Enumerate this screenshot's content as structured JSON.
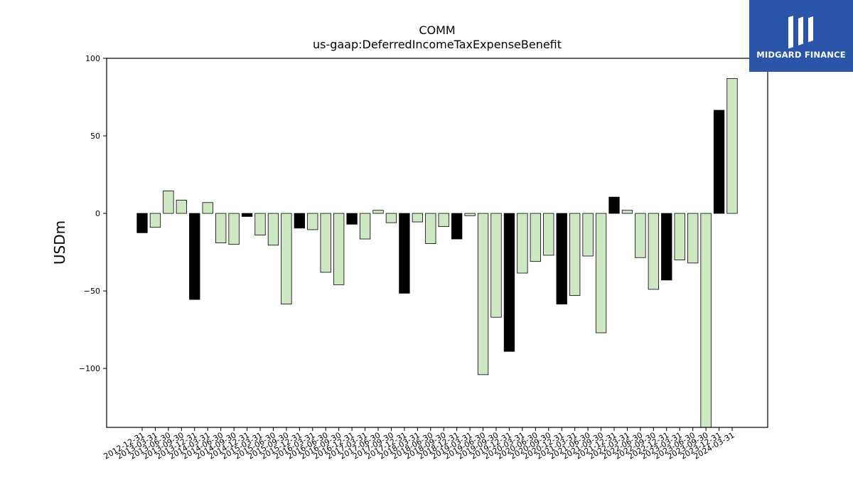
{
  "logo": {
    "text": "MIDGARD FINANCE",
    "bg_color": "#2a55a8"
  },
  "chart_data": {
    "type": "bar",
    "title": "COMM",
    "subtitle": "us-gaap:DeferredIncomeTaxExpenseBenefit",
    "xlabel": "",
    "ylabel": "USDm",
    "ylim": [
      -138,
      100
    ],
    "yticks": [
      100,
      50,
      0,
      -50,
      -100
    ],
    "ytick_labels": [
      "100",
      "50",
      "0",
      "−50",
      "−100"
    ],
    "colors": {
      "quarterly": "#cfe8c4",
      "annual": "#000000",
      "edge": "#000000"
    },
    "categories": [
      "2012-12-31",
      "2013-03-31",
      "2013-06-30",
      "2013-09-30",
      "2013-12-31",
      "2014-03-31",
      "2014-06-30",
      "2014-09-30",
      "2014-12-31",
      "2015-03-31",
      "2015-06-30",
      "2015-09-30",
      "2015-12-31",
      "2016-03-31",
      "2016-06-30",
      "2016-09-30",
      "2016-12-31",
      "2017-03-31",
      "2017-06-30",
      "2017-09-30",
      "2017-12-31",
      "2018-03-31",
      "2018-06-30",
      "2018-09-30",
      "2018-12-31",
      "2019-03-31",
      "2019-06-30",
      "2019-09-30",
      "2019-12-31",
      "2020-03-31",
      "2020-06-30",
      "2020-09-30",
      "2020-12-31",
      "2021-03-31",
      "2021-06-30",
      "2021-09-30",
      "2021-12-31",
      "2022-03-31",
      "2022-06-30",
      "2022-09-30",
      "2022-12-31",
      "2023-03-31",
      "2023-06-30",
      "2023-09-30",
      "2023-12-31",
      "2024-03-31"
    ],
    "values": [
      -12.5,
      -9,
      14.5,
      8.5,
      -55.5,
      7,
      -19,
      -20,
      -2,
      -14,
      -20.5,
      -58.5,
      -9.5,
      -10.5,
      -38,
      -46,
      -7,
      -16.5,
      2,
      -6,
      -51.5,
      -5.5,
      -19.5,
      -8.5,
      -16.5,
      -1.5,
      -104,
      -67,
      -89,
      -38.5,
      -31,
      -27,
      -58.5,
      -53,
      -27.5,
      -77,
      10.5,
      2,
      -28.5,
      -49,
      -43,
      -30,
      -32,
      -138,
      66.5,
      87
    ],
    "is_annual": [
      true,
      false,
      false,
      false,
      true,
      false,
      false,
      false,
      true,
      false,
      false,
      false,
      true,
      false,
      false,
      false,
      true,
      false,
      false,
      false,
      true,
      false,
      false,
      false,
      true,
      false,
      false,
      false,
      true,
      false,
      false,
      false,
      true,
      false,
      false,
      false,
      true,
      false,
      false,
      false,
      true,
      false,
      false,
      false,
      true,
      false
    ]
  }
}
